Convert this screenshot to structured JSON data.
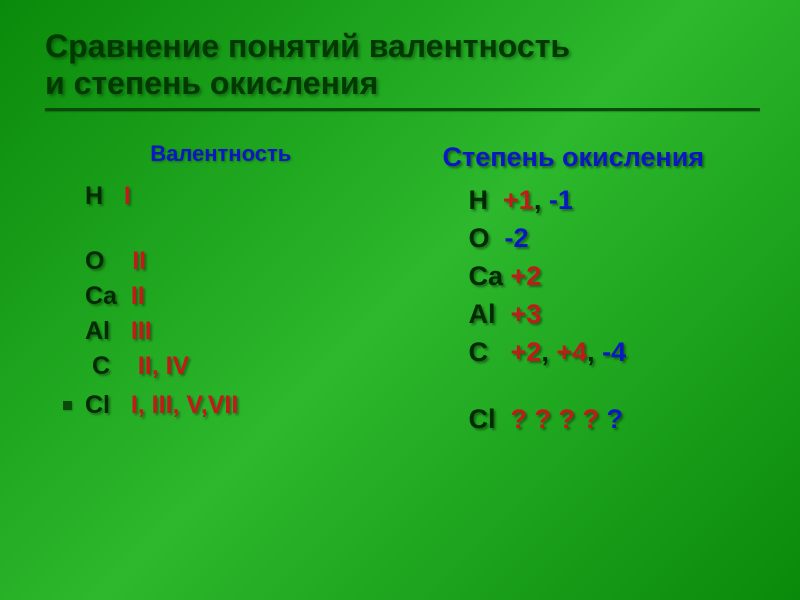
{
  "title_fontsize": 32,
  "left_fontsize": 25,
  "right_fontsize": 27,
  "colors": {
    "background_start": "#0a8a0a",
    "background_mid": "#2db82d",
    "title_color": "#003a00",
    "element_color": "#002a00",
    "red": "#c31919",
    "blue": "#0a17c2",
    "underline": "#0a4a0a"
  },
  "title_line1": "Сравнение понятий валентность",
  "title_line2": "и степень окисления",
  "left": {
    "header": "Валентность",
    "rows": [
      {
        "elem": "H   ",
        "vals": [
          {
            "t": "I",
            "c": "red"
          }
        ]
      },
      {
        "gap": true
      },
      {
        "elem": "O    ",
        "vals": [
          {
            "t": "II",
            "c": "red"
          }
        ]
      },
      {
        "elem": "Ca  ",
        "vals": [
          {
            "t": "II",
            "c": "red"
          }
        ]
      },
      {
        "elem": "Al   ",
        "vals": [
          {
            "t": "III",
            "c": "red"
          }
        ]
      },
      {
        "elem": " C    ",
        "vals": [
          {
            "t": "II, IV",
            "c": "red"
          }
        ]
      },
      {
        "gap": "s"
      },
      {
        "bullet": true,
        "elem": "Cl   ",
        "vals": [
          {
            "t": "I, III, V,VII",
            "c": "red"
          }
        ]
      }
    ]
  },
  "right": {
    "header": "Степень окисления",
    "rows": [
      {
        "elem": "H  ",
        "vals": [
          {
            "t": "+1",
            "c": "red"
          },
          {
            "t": ", ",
            "c": "elem"
          },
          {
            "t": "-1",
            "c": "blue"
          }
        ]
      },
      {
        "elem": "O  ",
        "vals": [
          {
            "t": "-2",
            "c": "blue"
          }
        ]
      },
      {
        "elem": "Ca ",
        "vals": [
          {
            "t": "+2",
            "c": "red"
          }
        ]
      },
      {
        "elem": "Al  ",
        "vals": [
          {
            "t": "+3",
            "c": "red"
          }
        ]
      },
      {
        "elem": "C   ",
        "vals": [
          {
            "t": "+2",
            "c": "red"
          },
          {
            "t": ", ",
            "c": "elem"
          },
          {
            "t": "+4",
            "c": "red"
          },
          {
            "t": ", ",
            "c": "elem"
          },
          {
            "t": "-4",
            "c": "blue"
          }
        ]
      },
      {
        "gap": true
      },
      {
        "elem": "Cl  ",
        "vals": [
          {
            "t": "? ? ? ? ",
            "c": "red"
          },
          {
            "t": "?",
            "c": "blue"
          }
        ]
      }
    ]
  }
}
